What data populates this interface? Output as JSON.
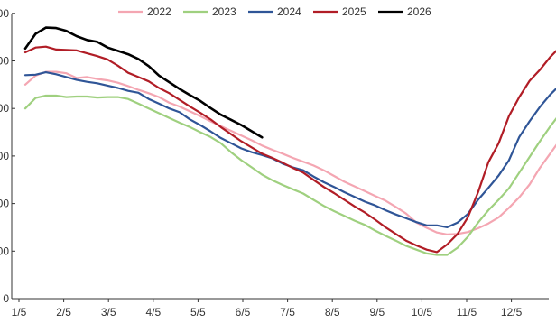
{
  "chart_data": {
    "type": "line",
    "title": "",
    "xlabel": "",
    "ylabel": "",
    "x_ticks": [
      "1/5",
      "2/5",
      "3/5",
      "4/5",
      "5/5",
      "6/5",
      "7/5",
      "8/5",
      "9/5",
      "10/5",
      "11/5",
      "12/5"
    ],
    "y_ticks": [
      0,
      100,
      200,
      300,
      400,
      500,
      600
    ],
    "y_tick_labels": [
      "0",
      "00",
      "00",
      "00",
      "00",
      "00",
      "00"
    ],
    "ylim": [
      0,
      600
    ],
    "x_unit": "weeks since 1/5",
    "legend_position": "top-center",
    "grid": false,
    "series": [
      {
        "name": "2022",
        "color": "#f4a6b2",
        "points": [
          [
            0,
            450
          ],
          [
            1,
            469
          ],
          [
            2,
            477
          ],
          [
            3,
            477
          ],
          [
            4,
            474
          ],
          [
            5,
            464
          ],
          [
            6,
            466
          ],
          [
            7,
            462
          ],
          [
            8,
            459
          ],
          [
            9,
            454
          ],
          [
            10,
            447
          ],
          [
            11,
            439
          ],
          [
            12,
            432
          ],
          [
            13,
            424
          ],
          [
            14,
            412
          ],
          [
            15,
            404
          ],
          [
            16,
            394
          ],
          [
            17,
            384
          ],
          [
            18,
            373
          ],
          [
            19,
            363
          ],
          [
            20,
            353
          ],
          [
            21,
            343
          ],
          [
            22,
            333
          ],
          [
            23,
            322
          ],
          [
            24,
            313
          ],
          [
            25,
            305
          ],
          [
            26,
            296
          ],
          [
            27,
            288
          ],
          [
            28,
            280
          ],
          [
            29,
            270
          ],
          [
            30,
            258
          ],
          [
            31,
            246
          ],
          [
            32,
            236
          ],
          [
            33,
            226
          ],
          [
            34,
            216
          ],
          [
            35,
            206
          ],
          [
            36,
            193
          ],
          [
            37,
            179
          ],
          [
            38,
            160
          ],
          [
            39,
            149
          ],
          [
            40,
            139
          ],
          [
            41,
            135
          ],
          [
            42,
            136
          ],
          [
            43,
            140
          ],
          [
            44,
            148
          ],
          [
            45,
            158
          ],
          [
            46,
            171
          ],
          [
            47,
            191
          ],
          [
            48,
            213
          ],
          [
            49,
            240
          ],
          [
            50,
            275
          ],
          [
            51,
            305
          ],
          [
            52,
            335
          ],
          [
            53,
            371
          ]
        ]
      },
      {
        "name": "2023",
        "color": "#9fd07f",
        "points": [
          [
            0,
            400
          ],
          [
            1,
            422
          ],
          [
            2,
            427
          ],
          [
            3,
            427
          ],
          [
            4,
            424
          ],
          [
            5,
            425
          ],
          [
            6,
            425
          ],
          [
            7,
            423
          ],
          [
            8,
            424
          ],
          [
            9,
            424
          ],
          [
            10,
            420
          ],
          [
            11,
            410
          ],
          [
            12,
            400
          ],
          [
            13,
            390
          ],
          [
            14,
            380
          ],
          [
            15,
            370
          ],
          [
            16,
            361
          ],
          [
            17,
            350
          ],
          [
            18,
            340
          ],
          [
            19,
            327
          ],
          [
            20,
            308
          ],
          [
            21,
            291
          ],
          [
            22,
            276
          ],
          [
            23,
            261
          ],
          [
            24,
            249
          ],
          [
            25,
            239
          ],
          [
            26,
            230
          ],
          [
            27,
            221
          ],
          [
            28,
            208
          ],
          [
            29,
            195
          ],
          [
            30,
            184
          ],
          [
            31,
            174
          ],
          [
            32,
            164
          ],
          [
            33,
            155
          ],
          [
            34,
            143
          ],
          [
            35,
            132
          ],
          [
            36,
            122
          ],
          [
            37,
            111
          ],
          [
            38,
            103
          ],
          [
            39,
            95
          ],
          [
            40,
            92
          ],
          [
            41,
            92
          ],
          [
            42,
            107
          ],
          [
            43,
            130
          ],
          [
            44,
            160
          ],
          [
            45,
            186
          ],
          [
            46,
            208
          ],
          [
            47,
            232
          ],
          [
            48,
            265
          ],
          [
            49,
            298
          ],
          [
            50,
            331
          ],
          [
            51,
            362
          ],
          [
            52,
            390
          ],
          [
            53,
            412
          ],
          [
            54,
            422
          ]
        ]
      },
      {
        "name": "2024",
        "color": "#2f5597",
        "points": [
          [
            0,
            470
          ],
          [
            1,
            471
          ],
          [
            2,
            476
          ],
          [
            3,
            472
          ],
          [
            4,
            466
          ],
          [
            5,
            460
          ],
          [
            6,
            456
          ],
          [
            7,
            453
          ],
          [
            8,
            448
          ],
          [
            9,
            443
          ],
          [
            10,
            437
          ],
          [
            11,
            433
          ],
          [
            12,
            420
          ],
          [
            13,
            410
          ],
          [
            14,
            400
          ],
          [
            15,
            392
          ],
          [
            16,
            377
          ],
          [
            17,
            365
          ],
          [
            18,
            352
          ],
          [
            19,
            338
          ],
          [
            20,
            327
          ],
          [
            21,
            316
          ],
          [
            22,
            308
          ],
          [
            23,
            302
          ],
          [
            24,
            295
          ],
          [
            25,
            284
          ],
          [
            26,
            276
          ],
          [
            27,
            270
          ],
          [
            28,
            257
          ],
          [
            29,
            245
          ],
          [
            30,
            235
          ],
          [
            31,
            224
          ],
          [
            32,
            214
          ],
          [
            33,
            204
          ],
          [
            34,
            196
          ],
          [
            35,
            186
          ],
          [
            36,
            177
          ],
          [
            37,
            169
          ],
          [
            38,
            161
          ],
          [
            39,
            154
          ],
          [
            40,
            154
          ],
          [
            41,
            150
          ],
          [
            42,
            160
          ],
          [
            43,
            178
          ],
          [
            44,
            208
          ],
          [
            45,
            233
          ],
          [
            46,
            259
          ],
          [
            47,
            291
          ],
          [
            48,
            340
          ],
          [
            49,
            373
          ],
          [
            50,
            403
          ],
          [
            51,
            429
          ],
          [
            52,
            450
          ],
          [
            53,
            471
          ],
          [
            54,
            491
          ],
          [
            55,
            508
          ]
        ]
      },
      {
        "name": "2025",
        "color": "#b11d26",
        "points": [
          [
            0,
            518
          ],
          [
            1,
            528
          ],
          [
            2,
            530
          ],
          [
            3,
            524
          ],
          [
            4,
            523
          ],
          [
            5,
            522
          ],
          [
            6,
            516
          ],
          [
            7,
            510
          ],
          [
            8,
            503
          ],
          [
            9,
            490
          ],
          [
            10,
            475
          ],
          [
            11,
            466
          ],
          [
            12,
            457
          ],
          [
            13,
            443
          ],
          [
            14,
            432
          ],
          [
            15,
            418
          ],
          [
            16,
            404
          ],
          [
            17,
            391
          ],
          [
            18,
            377
          ],
          [
            19,
            361
          ],
          [
            20,
            346
          ],
          [
            21,
            331
          ],
          [
            22,
            318
          ],
          [
            23,
            305
          ],
          [
            24,
            296
          ],
          [
            25,
            286
          ],
          [
            26,
            275
          ],
          [
            27,
            265
          ],
          [
            28,
            250
          ],
          [
            29,
            235
          ],
          [
            30,
            222
          ],
          [
            31,
            208
          ],
          [
            32,
            194
          ],
          [
            33,
            181
          ],
          [
            34,
            166
          ],
          [
            35,
            150
          ],
          [
            36,
            136
          ],
          [
            37,
            122
          ],
          [
            38,
            112
          ],
          [
            39,
            103
          ],
          [
            40,
            98
          ],
          [
            41,
            114
          ],
          [
            42,
            136
          ],
          [
            43,
            171
          ],
          [
            44,
            224
          ],
          [
            45,
            287
          ],
          [
            46,
            327
          ],
          [
            47,
            384
          ],
          [
            48,
            424
          ],
          [
            49,
            458
          ],
          [
            50,
            481
          ],
          [
            51,
            508
          ],
          [
            52,
            530
          ],
          [
            53,
            541
          ],
          [
            54,
            546
          ]
        ]
      },
      {
        "name": "2026",
        "color": "#000000",
        "points": [
          [
            0,
            526
          ],
          [
            1,
            557
          ],
          [
            2,
            570
          ],
          [
            3,
            569
          ],
          [
            4,
            563
          ],
          [
            5,
            552
          ],
          [
            6,
            544
          ],
          [
            7,
            540
          ],
          [
            8,
            528
          ],
          [
            9,
            521
          ],
          [
            10,
            514
          ],
          [
            11,
            504
          ],
          [
            12,
            489
          ],
          [
            13,
            469
          ],
          [
            14,
            455
          ],
          [
            15,
            441
          ],
          [
            16,
            428
          ],
          [
            17,
            416
          ],
          [
            18,
            401
          ],
          [
            19,
            387
          ],
          [
            20,
            376
          ],
          [
            21,
            365
          ],
          [
            22,
            352
          ],
          [
            23,
            339
          ]
        ]
      }
    ]
  }
}
